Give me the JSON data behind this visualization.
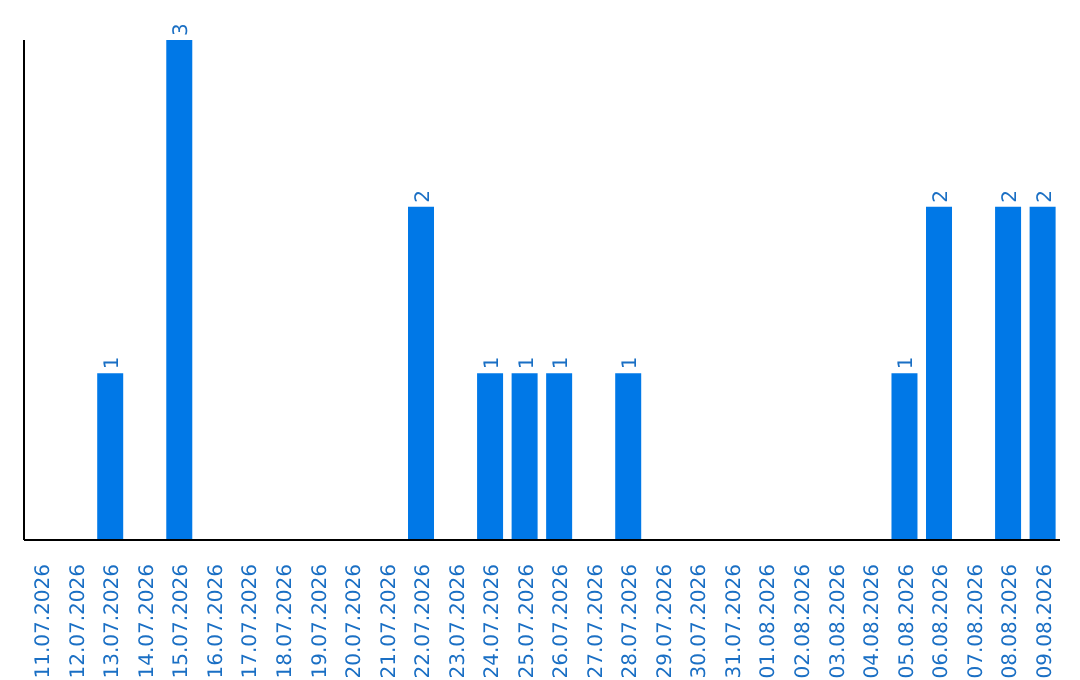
{
  "chart_data": {
    "type": "bar",
    "categories": [
      "11.07.2026",
      "12.07.2026",
      "13.07.2026",
      "14.07.2026",
      "15.07.2026",
      "16.07.2026",
      "17.07.2026",
      "18.07.2026",
      "19.07.2026",
      "20.07.2026",
      "21.07.2026",
      "22.07.2026",
      "23.07.2026",
      "24.07.2026",
      "25.07.2026",
      "26.07.2026",
      "27.07.2026",
      "28.07.2026",
      "29.07.2026",
      "30.07.2026",
      "31.07.2026",
      "01.08.2026",
      "02.08.2026",
      "03.08.2026",
      "04.08.2026",
      "05.08.2026",
      "06.08.2026",
      "07.08.2026",
      "08.08.2026",
      "09.08.2026"
    ],
    "values": [
      0,
      0,
      1,
      0,
      3,
      0,
      0,
      0,
      0,
      0,
      0,
      2,
      0,
      1,
      1,
      1,
      0,
      1,
      0,
      0,
      0,
      0,
      0,
      0,
      0,
      1,
      2,
      0,
      2,
      2
    ],
    "value_labels": [
      null,
      null,
      "1",
      null,
      "3",
      null,
      null,
      null,
      null,
      null,
      null,
      "2",
      null,
      "1",
      "1",
      "1",
      null,
      "1",
      null,
      null,
      null,
      null,
      null,
      null,
      null,
      "1",
      "2",
      null,
      "2",
      "2"
    ],
    "color": "#0078e7",
    "tick_labels": "x"
  }
}
